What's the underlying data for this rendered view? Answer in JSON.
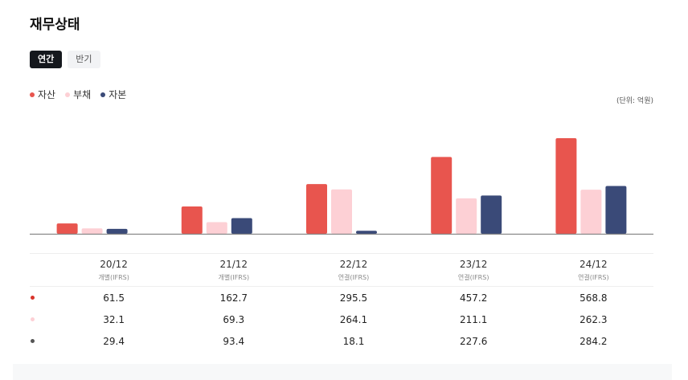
{
  "page": {
    "title": "재무상태"
  },
  "tabs": [
    {
      "label": "연간",
      "active": true
    },
    {
      "label": "반기",
      "active": false
    }
  ],
  "unit_label": "(단위: 억원)",
  "legend": [
    {
      "label": "자산",
      "color": "#e8554e"
    },
    {
      "label": "부채",
      "color": "#fdd0d5"
    },
    {
      "label": "자본",
      "color": "#3a4a78"
    }
  ],
  "table": {
    "marker_colors": [
      "#d9342b",
      "#fdd0d5",
      "#555555"
    ],
    "columns": [
      {
        "period": "20/12",
        "basis": "개별(IFRS)"
      },
      {
        "period": "21/12",
        "basis": "개별(IFRS)"
      },
      {
        "period": "22/12",
        "basis": "연결(IFRS)"
      },
      {
        "period": "23/12",
        "basis": "연결(IFRS)"
      },
      {
        "period": "24/12",
        "basis": "연결(IFRS)"
      }
    ],
    "rows": [
      {
        "name": "자산",
        "values": [
          "61.5",
          "162.7",
          "295.5",
          "457.2",
          "568.8"
        ]
      },
      {
        "name": "부채",
        "values": [
          "32.1",
          "69.3",
          "264.1",
          "211.1",
          "262.3"
        ]
      },
      {
        "name": "자본",
        "values": [
          "29.4",
          "93.4",
          "18.1",
          "227.6",
          "284.2"
        ]
      }
    ]
  },
  "chart_data": {
    "type": "bar",
    "title": "재무상태",
    "categories": [
      "20/12",
      "21/12",
      "22/12",
      "23/12",
      "24/12"
    ],
    "series": [
      {
        "name": "자산",
        "values": [
          61.5,
          162.7,
          295.5,
          457.2,
          568.8
        ],
        "color": "#e8554e"
      },
      {
        "name": "부채",
        "values": [
          32.1,
          69.3,
          264.1,
          211.1,
          262.3
        ],
        "color": "#fdd0d5"
      },
      {
        "name": "자본",
        "values": [
          29.4,
          93.4,
          18.1,
          227.6,
          284.2
        ],
        "color": "#3a4a78"
      }
    ],
    "ylim": [
      0,
      568.8
    ],
    "xlabel": "",
    "ylabel": "",
    "unit": "억원",
    "grid": false,
    "legend_position": "top-left"
  }
}
